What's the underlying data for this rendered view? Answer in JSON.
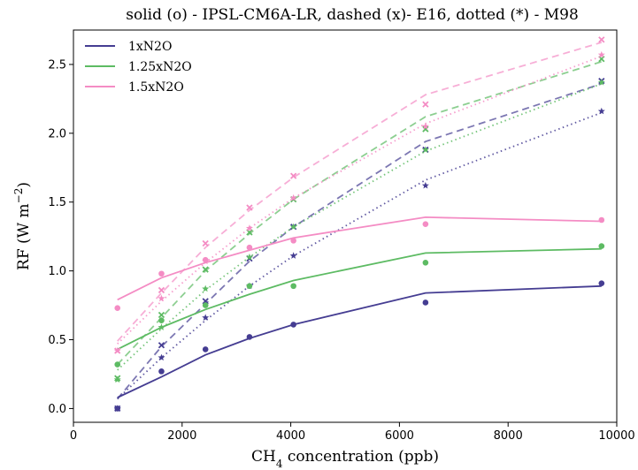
{
  "chart_data": {
    "type": "line",
    "title": "solid (o) - IPSL-CM6A-LR, dashed (x)- E16, dotted (*) - M98",
    "xlabel_prefix": "CH",
    "xlabel_sub": "4",
    "xlabel_suffix": " concentration (ppb)",
    "ylabel_main": "RF (W m",
    "ylabel_sup": "−2",
    "ylabel_close": ")",
    "xlim": [
      0,
      10000
    ],
    "ylim": [
      -0.1,
      2.75
    ],
    "xticks": [
      0,
      2000,
      4000,
      6000,
      8000,
      10000
    ],
    "yticks": [
      0.0,
      0.5,
      1.0,
      1.5,
      2.0,
      2.5
    ],
    "ytick_labels": [
      "0.0",
      "0.5",
      "1.0",
      "1.5",
      "2.0",
      "2.5"
    ],
    "x": [
      810,
      1620,
      2430,
      3240,
      4050,
      6480,
      9720
    ],
    "legend_position": "upper-left",
    "series": [
      {
        "name": "1xN2O",
        "color": "#453d92",
        "ipsl_line": [
          0.08,
          0.23,
          0.39,
          0.51,
          0.61,
          0.84,
          0.89
        ],
        "ipsl_points": [
          0.0,
          0.27,
          0.43,
          0.52,
          0.61,
          0.77,
          0.91
        ],
        "e16_line": [
          0.07,
          0.45,
          0.76,
          1.07,
          1.32,
          1.94,
          2.36
        ],
        "e16_points": [
          0.0,
          0.46,
          0.78,
          1.09,
          1.32,
          1.88,
          2.38
        ],
        "m98_line": [
          0.07,
          0.37,
          0.64,
          0.89,
          1.11,
          1.66,
          2.15
        ],
        "m98_points": [
          0.0,
          0.37,
          0.66,
          0.89,
          1.11,
          1.62,
          2.16
        ]
      },
      {
        "name": "1.25xN2O",
        "color": "#5dbb63",
        "ipsl_line": [
          0.43,
          0.59,
          0.72,
          0.83,
          0.93,
          1.13,
          1.16
        ],
        "ipsl_points": [
          0.32,
          0.64,
          0.75,
          0.89,
          0.89,
          1.06,
          1.18
        ],
        "e16_line": [
          0.32,
          0.66,
          1.0,
          1.27,
          1.52,
          2.12,
          2.52
        ],
        "e16_points": [
          0.22,
          0.68,
          1.01,
          1.28,
          1.52,
          2.03,
          2.54
        ],
        "m98_line": [
          0.28,
          0.58,
          0.86,
          1.1,
          1.32,
          1.87,
          2.36
        ],
        "m98_points": [
          0.21,
          0.59,
          0.87,
          1.1,
          1.32,
          1.88,
          2.37
        ]
      },
      {
        "name": "1.5xN2O",
        "color": "#f48cc4",
        "ipsl_line": [
          0.79,
          0.95,
          1.06,
          1.15,
          1.24,
          1.39,
          1.36
        ],
        "ipsl_points": [
          0.73,
          0.98,
          1.08,
          1.17,
          1.22,
          1.34,
          1.37
        ],
        "e16_line": [
          0.49,
          0.84,
          1.17,
          1.44,
          1.68,
          2.28,
          2.66
        ],
        "e16_points": [
          0.42,
          0.86,
          1.2,
          1.46,
          1.69,
          2.21,
          2.68
        ],
        "m98_line": [
          0.47,
          0.78,
          1.06,
          1.31,
          1.53,
          2.07,
          2.56
        ],
        "m98_points": [
          0.42,
          0.8,
          1.07,
          1.31,
          1.53,
          2.05,
          2.57
        ]
      }
    ]
  }
}
